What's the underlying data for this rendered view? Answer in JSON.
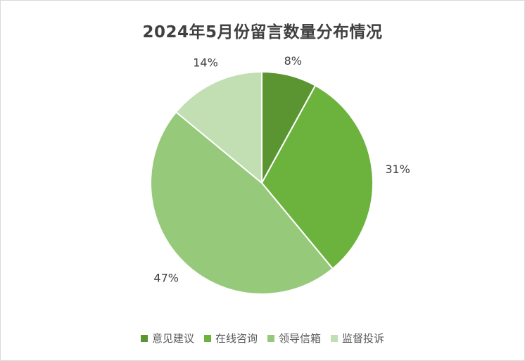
{
  "chart_data": {
    "type": "pie",
    "title": "2024年5月份留言数量分布情况",
    "categories": [
      "意见建议",
      "在线咨询",
      "领导信箱",
      "监督投诉"
    ],
    "values": [
      8,
      31,
      47,
      14
    ],
    "data_labels": [
      "8%",
      "31%",
      "47%",
      "14%"
    ],
    "colors": [
      "#5a9532",
      "#6cb33e",
      "#97c97b",
      "#c2dfb3"
    ],
    "legend_position": "bottom"
  }
}
